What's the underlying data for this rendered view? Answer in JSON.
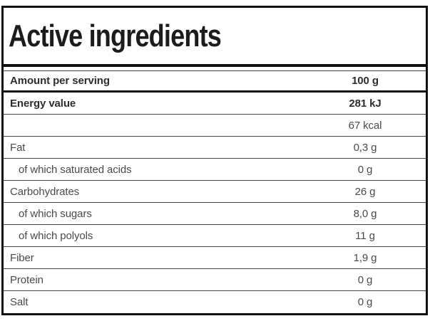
{
  "title": "Active ingredients",
  "header": {
    "label": "Amount per serving",
    "value": "100 g"
  },
  "rows": [
    {
      "label": "Energy value",
      "value": "281 kJ",
      "bold": true,
      "indent": false
    },
    {
      "label": "",
      "value": "67 kcal",
      "bold": false,
      "indent": false
    },
    {
      "label": "Fat",
      "value": "0,3 g",
      "bold": false,
      "indent": false
    },
    {
      "label": "of which saturated acids",
      "value": "0 g",
      "bold": false,
      "indent": true
    },
    {
      "label": "Carbohydrates",
      "value": "26 g",
      "bold": false,
      "indent": false
    },
    {
      "label": "of which sugars",
      "value": "8,0 g",
      "bold": false,
      "indent": true
    },
    {
      "label": "of which polyols",
      "value": "11 g",
      "bold": false,
      "indent": true
    },
    {
      "label": "Fiber",
      "value": "1,9 g",
      "bold": false,
      "indent": false
    },
    {
      "label": "Protein",
      "value": "0 g",
      "bold": false,
      "indent": false
    },
    {
      "label": "Salt",
      "value": "0 g",
      "bold": false,
      "indent": false
    }
  ],
  "colors": {
    "outer_border": "#101010",
    "separator": "#454545",
    "text_bold": "#2d2d2d",
    "text_regular": "#4a4a4a",
    "title_text": "#1c1c1c",
    "background": "#ffffff"
  }
}
